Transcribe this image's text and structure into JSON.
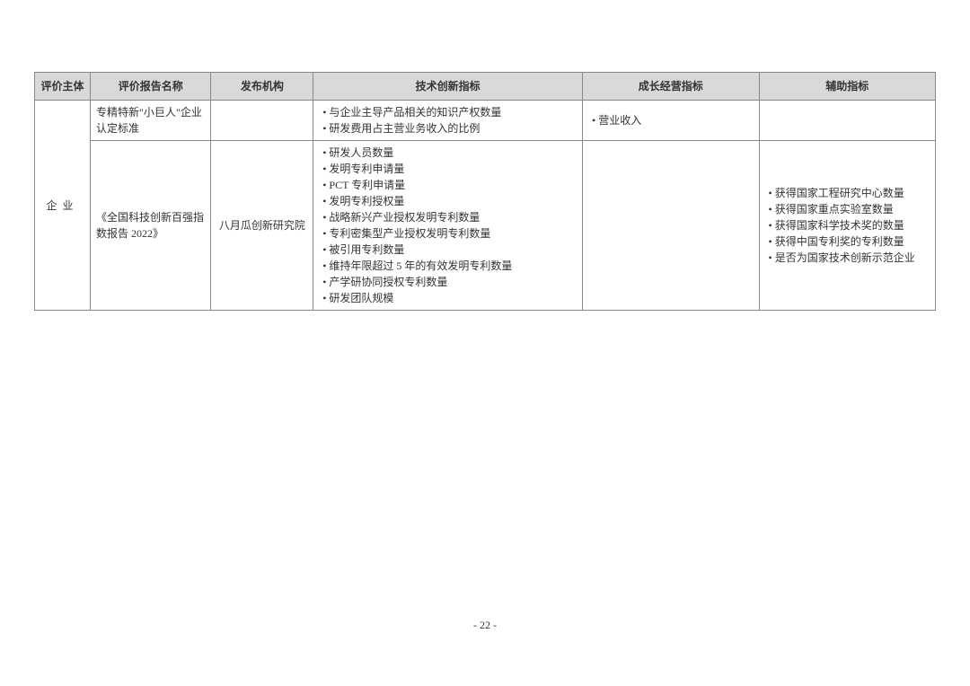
{
  "headers": {
    "subject": "评价主体",
    "report": "评价报告名称",
    "org": "发布机构",
    "tech": "技术创新指标",
    "growth": "成长经营指标",
    "aux": "辅助指标"
  },
  "rows": [
    {
      "subject": "企业",
      "report": "专精特新\"小巨人\"企业认定标准",
      "org": "",
      "tech": [
        "与企业主导产品相关的知识产权数量",
        "研发费用占主营业务收入的比例"
      ],
      "growth": [
        "营业收入"
      ],
      "aux": []
    },
    {
      "report": "《全国科技创新百强指数报告 2022》",
      "org": "八月瓜创新研究院",
      "tech": [
        "研发人员数量",
        "发明专利申请量",
        "PCT 专利申请量",
        "发明专利授权量",
        "战略新兴产业授权发明专利数量",
        "专利密集型产业授权发明专利数量",
        "被引用专利数量",
        "维持年限超过 5 年的有效发明专利数量",
        "产学研协同授权专利数量",
        "研发团队规模"
      ],
      "growth": [],
      "aux": [
        "获得国家工程研究中心数量",
        "获得国家重点实验室数量",
        "获得国家科学技术奖的数量",
        "获得中国专利奖的专利数量",
        "是否为国家技术创新示范企业"
      ]
    }
  ],
  "page_number": "- 22 -"
}
